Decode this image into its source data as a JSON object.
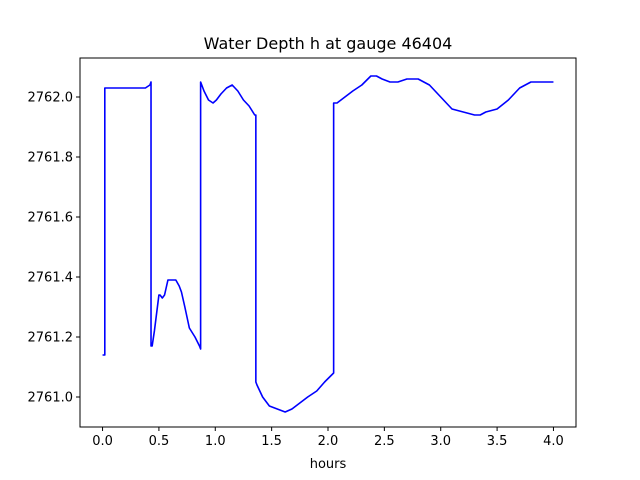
{
  "chart_data": {
    "type": "line",
    "title": "Water Depth h at gauge 46404",
    "xlabel": "hours",
    "ylabel": "",
    "xlim": [
      -0.2,
      4.2
    ],
    "ylim": [
      2760.9,
      2762.13
    ],
    "xticks": [
      0.0,
      0.5,
      1.0,
      1.5,
      2.0,
      2.5,
      3.0,
      3.5,
      4.0
    ],
    "xtick_labels": [
      "0.0",
      "0.5",
      "1.0",
      "1.5",
      "2.0",
      "2.5",
      "3.0",
      "3.5",
      "4.0"
    ],
    "yticks": [
      2761.0,
      2761.2,
      2761.4,
      2761.6,
      2761.8,
      2762.0
    ],
    "ytick_labels": [
      "2761.0",
      "2761.2",
      "2761.4",
      "2761.6",
      "2761.8",
      "2762.0"
    ],
    "grid": false,
    "colors": {
      "series": "#0000ff",
      "axes": "#000000",
      "background": "#ffffff"
    },
    "series": [
      {
        "x": [
          0.0,
          0.02,
          0.02,
          0.1,
          0.2,
          0.3,
          0.38,
          0.42,
          0.43,
          0.43,
          0.44,
          0.46,
          0.5,
          0.51,
          0.53,
          0.55,
          0.58,
          0.61,
          0.63,
          0.65,
          0.68,
          0.7,
          0.73,
          0.77,
          0.82,
          0.86,
          0.87,
          0.87,
          0.9,
          0.94,
          0.98,
          1.01,
          1.05,
          1.1,
          1.15,
          1.2,
          1.25,
          1.3,
          1.35,
          1.36,
          1.36,
          1.37,
          1.42,
          1.48,
          1.55,
          1.62,
          1.68,
          1.75,
          1.82,
          1.9,
          1.97,
          2.05,
          2.05,
          2.05,
          2.08,
          2.15,
          2.22,
          2.3,
          2.38,
          2.43,
          2.48,
          2.55,
          2.62,
          2.7,
          2.8,
          2.9,
          3.0,
          3.1,
          3.2,
          3.3,
          3.35,
          3.4,
          3.5,
          3.6,
          3.7,
          3.8,
          3.9,
          4.0
        ],
        "y": [
          2761.14,
          2761.14,
          2762.03,
          2762.03,
          2762.03,
          2762.03,
          2762.03,
          2762.04,
          2762.05,
          2761.17,
          2761.17,
          2761.22,
          2761.34,
          2761.34,
          2761.33,
          2761.34,
          2761.39,
          2761.39,
          2761.39,
          2761.39,
          2761.37,
          2761.35,
          2761.3,
          2761.23,
          2761.2,
          2761.17,
          2761.16,
          2762.05,
          2762.02,
          2761.99,
          2761.98,
          2761.99,
          2762.01,
          2762.03,
          2762.04,
          2762.02,
          2761.99,
          2761.97,
          2761.94,
          2761.94,
          2761.05,
          2761.04,
          2761.0,
          2760.97,
          2760.96,
          2760.95,
          2760.96,
          2760.98,
          2761.0,
          2761.02,
          2761.05,
          2761.08,
          2761.09,
          2761.98,
          2761.98,
          2762.0,
          2762.02,
          2762.04,
          2762.07,
          2762.07,
          2762.06,
          2762.05,
          2762.05,
          2762.06,
          2762.06,
          2762.04,
          2762.0,
          2761.96,
          2761.95,
          2761.94,
          2761.94,
          2761.95,
          2761.96,
          2761.99,
          2762.03,
          2762.05,
          2762.05,
          2762.05
        ]
      }
    ]
  }
}
